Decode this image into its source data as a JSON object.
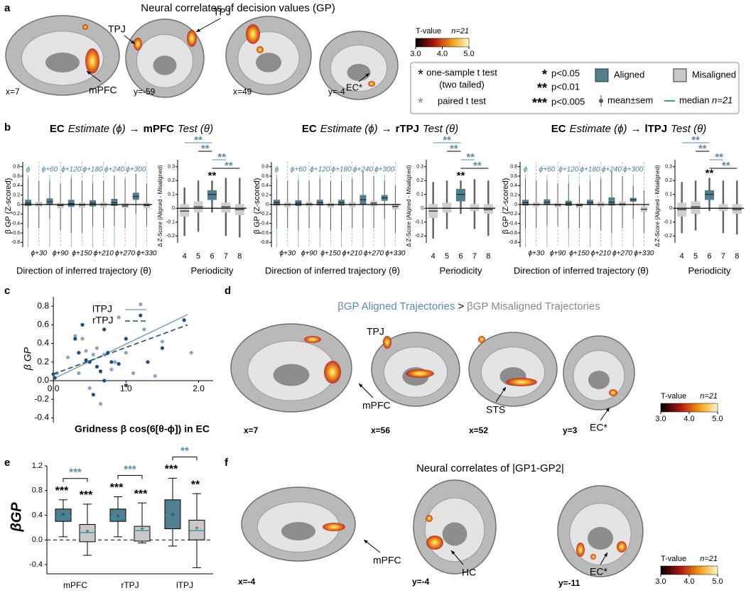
{
  "a": {
    "label": "a",
    "title": "Neural correlates of decision values (GP)",
    "slices": [
      "x=7",
      "y=-59",
      "x=49",
      "y=-4"
    ],
    "labels": [
      "TPJ",
      "TPJ",
      "mPFC",
      "EC*"
    ],
    "colorbar": {
      "title": "T-value",
      "n": "n=21",
      "ticks": [
        {
          "value": 3,
          "label": "3.0"
        },
        {
          "value": 4,
          "label": "4.0"
        },
        {
          "value": 5,
          "label": "5.0"
        }
      ]
    }
  },
  "legend": {
    "star": "*",
    "one_sample": "one-sample t test",
    "two_tailed": "(two tailed)",
    "teal_star": "*",
    "paired": "paired t test",
    "p1_mark": "*",
    "p1": "p<0.05",
    "p2_mark": "**",
    "p2": "p<0.01",
    "p3_mark": "***",
    "p3": "p<0.005",
    "aligned": "Aligned",
    "misaligned": "Misaligned",
    "mean": "mean±sem",
    "median": "median",
    "n": "n=21",
    "aligned_color": "#4f7f91",
    "misaligned_color": "#c8c8c8"
  },
  "b": {
    "label": "b",
    "charts": [
      {
        "title": {
          "region": "EC",
          "estimate": "Estimate (ϕ)",
          "arrow": "→",
          "target": "mPFC",
          "test": "Test (θ)"
        },
        "direction": {
          "ylabel": "β GP (Z-scored)",
          "xlabel": "Direction of inferred trajectory (θ)",
          "aligned_labels": [
            "ϕ",
            "ϕ+60",
            "ϕ+120",
            "ϕ+180",
            "ϕ+240",
            "ϕ+300"
          ],
          "misaligned_labels": [
            "ϕ+30",
            "ϕ+90",
            "ϕ+150",
            "ϕ+210",
            "ϕ+270",
            "ϕ+330"
          ],
          "ylim": [
            -0.9,
            0.9
          ],
          "yticks": [
            -0.8,
            -0.6,
            -0.4,
            -0.2,
            0,
            0.2,
            0.4,
            0.6,
            0.8
          ],
          "aligned": {
            "q1": [
              -0.03,
              -0.01,
              -0.05,
              -0.04,
              -0.03,
              0.1
            ],
            "median": [
              0.03,
              0.06,
              0.02,
              0.03,
              0.04,
              0.17
            ],
            "q3": [
              0.1,
              0.13,
              0.1,
              0.09,
              0.12,
              0.25
            ],
            "low": [
              -0.5,
              -0.3,
              -0.6,
              -0.45,
              -0.45,
              -0.2
            ],
            "high": [
              0.55,
              0.5,
              0.55,
              0.45,
              0.6,
              0.65
            ]
          },
          "misaligned": {
            "q1": [
              -0.05,
              -0.08,
              -0.07,
              -0.06,
              -0.07,
              -0.08
            ],
            "median": [
              0.0,
              -0.02,
              -0.01,
              0.0,
              -0.03,
              -0.02
            ],
            "q3": [
              0.06,
              0.04,
              0.05,
              0.05,
              0.03,
              0.04
            ],
            "low": [
              -0.5,
              -0.55,
              -0.6,
              -0.5,
              -0.5,
              -0.45
            ],
            "high": [
              0.5,
              0.45,
              0.5,
              0.5,
              0.55,
              0.45
            ]
          }
        },
        "periodicity": {
          "ylabel": "Δ Z-Score (Aligned - Misaligned)",
          "xlabel": "Periodicity",
          "categories": [
            "4",
            "5",
            "6",
            "7",
            "8"
          ],
          "ylim": [
            -0.25,
            0.35
          ],
          "yticks": [
            -0.2,
            -0.1,
            0,
            0.1,
            0.2,
            0.3
          ],
          "q1": [
            -0.06,
            -0.03,
            0.06,
            -0.03,
            -0.05
          ],
          "median": [
            -0.02,
            0.01,
            0.1,
            0.01,
            -0.01
          ],
          "q3": [
            0.03,
            0.05,
            0.13,
            0.04,
            0.03
          ],
          "low": [
            -0.2,
            -0.17,
            -0.03,
            -0.2,
            -0.21
          ],
          "high": [
            0.15,
            0.2,
            0.2,
            0.22,
            0.22
          ],
          "colors": [
            "#cfcfcf",
            "#cfcfcf",
            "#4f7f91",
            "#cfcfcf",
            "#cfcfcf"
          ],
          "sig": [
            "",
            "",
            "**",
            "",
            ""
          ],
          "comparisons": [
            {
              "from": "6",
              "to": "4",
              "label": "**"
            },
            {
              "from": "6",
              "to": "5",
              "label": "**"
            },
            {
              "from": "6",
              "to": "7",
              "label": "**"
            },
            {
              "from": "6",
              "to": "8",
              "label": "**"
            }
          ]
        }
      },
      {
        "title": {
          "region": "EC",
          "estimate": "Estimate (ϕ)",
          "arrow": "→",
          "target": "rTPJ",
          "test": "Test (θ)"
        },
        "direction": {
          "ylabel": "β GP (Z-scored)",
          "xlabel": "Direction of inferred trajectory (θ)",
          "aligned_labels": [
            "ϕ",
            "ϕ+60",
            "ϕ+120",
            "ϕ+180",
            "ϕ+240",
            "ϕ+300"
          ],
          "misaligned_labels": [
            "ϕ+30",
            "ϕ+90",
            "ϕ+150",
            "ϕ+210",
            "ϕ+270",
            "ϕ+330"
          ],
          "ylim": [
            -0.9,
            0.9
          ],
          "yticks": [
            -0.8,
            -0.6,
            -0.4,
            -0.2,
            0,
            0.2,
            0.4,
            0.6,
            0.8
          ],
          "aligned": {
            "q1": [
              -0.02,
              -0.03,
              -0.02,
              -0.02,
              0.0,
              0.08
            ],
            "median": [
              0.04,
              0.03,
              0.04,
              0.04,
              0.1,
              0.14
            ],
            "q3": [
              0.1,
              0.09,
              0.1,
              0.1,
              0.2,
              0.2
            ],
            "low": [
              -0.5,
              -0.55,
              -0.5,
              -0.55,
              -0.5,
              -0.3
            ],
            "high": [
              0.55,
              0.5,
              0.55,
              0.5,
              0.7,
              0.5
            ]
          },
          "misaligned": {
            "q1": [
              -0.06,
              -0.05,
              -0.07,
              -0.06,
              -0.04,
              -0.1
            ],
            "median": [
              0.0,
              0.01,
              -0.01,
              0.0,
              0.03,
              -0.04
            ],
            "q3": [
              0.05,
              0.06,
              0.04,
              0.06,
              0.08,
              0.02
            ],
            "low": [
              -0.5,
              -0.5,
              -0.55,
              -0.5,
              -0.5,
              -0.6
            ],
            "high": [
              0.5,
              0.5,
              0.5,
              0.55,
              0.6,
              0.4
            ]
          }
        },
        "periodicity": {
          "ylabel": "Δ Z-Score (Aligned - Misaligned)",
          "xlabel": "Periodicity",
          "categories": [
            "4",
            "5",
            "6",
            "7",
            "8"
          ],
          "ylim": [
            -0.25,
            0.35
          ],
          "yticks": [
            -0.2,
            -0.1,
            0,
            0.1,
            0.2,
            0.3
          ],
          "q1": [
            -0.07,
            -0.03,
            0.05,
            -0.02,
            -0.04
          ],
          "median": [
            -0.02,
            0.0,
            0.1,
            0.0,
            -0.01
          ],
          "q3": [
            0.03,
            0.04,
            0.14,
            0.03,
            0.03
          ],
          "low": [
            -0.22,
            -0.15,
            -0.04,
            -0.15,
            -0.2
          ],
          "high": [
            0.19,
            0.2,
            0.2,
            0.21,
            0.2
          ],
          "colors": [
            "#cfcfcf",
            "#cfcfcf",
            "#4f7f91",
            "#cfcfcf",
            "#cfcfcf"
          ],
          "sig": [
            "",
            "",
            "**",
            "",
            ""
          ],
          "comparisons": [
            {
              "from": "6",
              "to": "4",
              "label": "**"
            },
            {
              "from": "6",
              "to": "5",
              "label": "**"
            },
            {
              "from": "6",
              "to": "7",
              "label": "**"
            },
            {
              "from": "6",
              "to": "8",
              "label": "**"
            }
          ]
        }
      },
      {
        "title": {
          "region": "EC",
          "estimate": "Estimate (ϕ)",
          "arrow": "→",
          "target": "lTPJ",
          "test": "Test (θ)"
        },
        "direction": {
          "ylabel": "β GP (Z-scored)",
          "xlabel": "Direction of inferred trajectory (θ)",
          "aligned_labels": [
            "ϕ",
            "ϕ+60",
            "ϕ+120",
            "ϕ+180",
            "ϕ+240",
            "ϕ+300"
          ],
          "misaligned_labels": [
            "ϕ+30",
            "ϕ+90",
            "ϕ+150",
            "ϕ+210",
            "ϕ+270",
            "ϕ+330"
          ],
          "ylim": [
            -0.9,
            0.9
          ],
          "yticks": [
            -0.8,
            -0.6,
            -0.4,
            -0.2,
            0,
            0.2,
            0.4,
            0.6,
            0.8
          ],
          "aligned": {
            "q1": [
              -0.02,
              -0.01,
              -0.03,
              -0.01,
              -0.02,
              0.06
            ],
            "median": [
              0.04,
              0.05,
              0.03,
              0.04,
              0.05,
              0.1
            ],
            "q3": [
              0.1,
              0.11,
              0.08,
              0.1,
              0.15,
              0.14
            ],
            "low": [
              -0.5,
              -0.45,
              -0.5,
              -0.5,
              -0.6,
              -0.3
            ],
            "high": [
              0.55,
              0.5,
              0.45,
              0.5,
              0.7,
              0.4
            ]
          },
          "misaligned": {
            "q1": [
              -0.05,
              -0.06,
              -0.07,
              -0.05,
              -0.04,
              -0.16
            ],
            "median": [
              0.0,
              -0.01,
              -0.02,
              0.0,
              0.01,
              -0.1
            ],
            "q3": [
              0.05,
              0.04,
              0.03,
              0.06,
              0.07,
              -0.04
            ],
            "low": [
              -0.5,
              -0.45,
              -0.5,
              -0.55,
              -0.5,
              -0.6
            ],
            "high": [
              0.5,
              0.45,
              0.4,
              0.55,
              0.6,
              0.3
            ]
          }
        },
        "periodicity": {
          "ylabel": "Δ Z-Score (Aligned - Misaligned)",
          "xlabel": "Periodicity",
          "categories": [
            "4",
            "5",
            "6",
            "7",
            "8"
          ],
          "ylim": [
            -0.25,
            0.35
          ],
          "yticks": [
            -0.2,
            -0.1,
            0,
            0.1,
            0.2,
            0.3
          ],
          "q1": [
            -0.06,
            -0.04,
            0.06,
            -0.02,
            -0.04
          ],
          "median": [
            -0.01,
            0.01,
            0.1,
            0.0,
            -0.01
          ],
          "q3": [
            0.04,
            0.05,
            0.13,
            0.03,
            0.03
          ],
          "low": [
            -0.18,
            -0.16,
            -0.02,
            -0.18,
            -0.19
          ],
          "high": [
            0.19,
            0.2,
            0.22,
            0.2,
            0.2
          ],
          "colors": [
            "#cfcfcf",
            "#cfcfcf",
            "#4f7f91",
            "#cfcfcf",
            "#cfcfcf"
          ],
          "sig": [
            "",
            "",
            "**",
            "",
            ""
          ],
          "comparisons": [
            {
              "from": "6",
              "to": "4",
              "label": "**"
            },
            {
              "from": "6",
              "to": "5",
              "label": "**"
            },
            {
              "from": "6",
              "to": "7",
              "label": "**"
            },
            {
              "from": "6",
              "to": "8",
              "label": "**"
            }
          ]
        }
      }
    ]
  },
  "c": {
    "label": "c",
    "type": "scatter",
    "xlabel": "Gridness β cos(6[θ-ϕ]) in EC",
    "ylabel": "β GP",
    "xlim": [
      -0.05,
      2.2
    ],
    "ylim": [
      -0.45,
      0.9
    ],
    "xticks": [
      {
        "value": 0,
        "label": "0.0"
      },
      {
        "value": 1,
        "label": "1.0"
      },
      {
        "value": 2,
        "label": "2.0"
      }
    ],
    "yticks": [
      {
        "value": -0.4,
        "label": "-0.4"
      },
      {
        "value": -0.2,
        "label": "-0.2"
      },
      {
        "value": 0,
        "label": "0.0"
      },
      0.2,
      0.4,
      0.6,
      0.8
    ],
    "series": [
      {
        "name": "lTPJ",
        "color": "#8aa6bf",
        "line_style": "solid",
        "x": [
          0.05,
          0.2,
          0.3,
          0.35,
          0.4,
          0.45,
          0.5,
          0.55,
          0.6,
          0.65,
          0.7,
          0.8,
          0.85,
          0.9,
          1.0,
          1.1,
          1.2,
          1.25,
          1.4,
          1.5,
          1.9
        ],
        "y": [
          0.08,
          0.25,
          0.48,
          0.08,
          0.45,
          0.32,
          -0.08,
          0.28,
          0.35,
          -0.25,
          0.28,
          0.12,
          0.2,
          0.68,
          0.3,
          0.08,
          0.82,
          0.55,
          0.05,
          0.42,
          0.3
        ],
        "fit_x": [
          0,
          1.85
        ],
        "fit_y": [
          0.02,
          0.71
        ]
      },
      {
        "name": "rTPJ",
        "color": "#1f4e79",
        "line_style": "dashed",
        "x": [
          0.0,
          0.02,
          0.3,
          0.35,
          0.4,
          0.45,
          0.5,
          0.55,
          0.6,
          0.65,
          0.7,
          0.7,
          0.75,
          0.8,
          0.9,
          1.0,
          1.0,
          1.2,
          1.3,
          1.5,
          1.8
        ],
        "y": [
          0.07,
          0.03,
          0.45,
          0.3,
          0.6,
          0.22,
          0.2,
          -0.15,
          0.15,
          0.1,
          0.0,
          0.55,
          0.3,
          0.2,
          0.18,
          -0.05,
          0.45,
          0.7,
          0.2,
          0.35,
          0.65
        ],
        "fit_x": [
          0,
          1.85
        ],
        "fit_y": [
          0.07,
          0.6
        ]
      }
    ]
  },
  "d": {
    "label": "d",
    "title_aligned": "βGP Aligned Trajectories",
    "title_op": ">",
    "title_misaligned": "βGP Misaligned Trajectories",
    "slices": [
      "x=7",
      "x=56",
      "x=52",
      "y=3"
    ],
    "labels": [
      "TPJ",
      "mPFC",
      "STS",
      "EC*"
    ],
    "colorbar": {
      "title": "T-value",
      "n": "n=21",
      "ticks": [
        {
          "value": 3,
          "label": "3.0"
        },
        {
          "value": 4,
          "label": "4.0"
        },
        {
          "value": 5,
          "label": "5.0"
        }
      ]
    }
  },
  "e": {
    "label": "e",
    "type": "box",
    "ylabel": "βGP",
    "categories": [
      "mPFC",
      "rTPJ",
      "lTPJ"
    ],
    "ylim": [
      -0.55,
      1.2
    ],
    "yticks": [
      {
        "value": -0.4,
        "label": "-0.4"
      },
      {
        "value": 0,
        "label": "0.0"
      },
      0.4,
      0.8,
      1.2
    ],
    "reference_line": 0,
    "series": [
      {
        "name": "Aligned",
        "color": "#4f7f91",
        "q1": [
          0.3,
          0.3,
          0.18
        ],
        "median": [
          0.38,
          0.36,
          0.4
        ],
        "q3": [
          0.5,
          0.5,
          0.65
        ],
        "low": [
          0.05,
          0.05,
          -0.1
        ],
        "high": [
          0.65,
          0.7,
          1.0
        ],
        "mean": [
          0.4,
          0.38,
          0.4
        ],
        "sig": [
          "***",
          "***",
          "***"
        ]
      },
      {
        "name": "Misaligned",
        "color": "#c8c8c8",
        "q1": [
          -0.03,
          -0.02,
          0.0
        ],
        "median": [
          0.12,
          0.15,
          0.15
        ],
        "q3": [
          0.25,
          0.22,
          0.32
        ],
        "low": [
          -0.25,
          -0.05,
          -0.45
        ],
        "high": [
          0.58,
          0.6,
          0.75
        ],
        "mean": [
          0.13,
          0.17,
          0.18
        ],
        "sig": [
          "***",
          "***",
          "**"
        ]
      }
    ],
    "paired_sig": [
      "***",
      "***",
      "**"
    ]
  },
  "f": {
    "label": "f",
    "title": "Neural correlates of |GP1-GP2|",
    "slices": [
      "x=-4",
      "y=-4",
      "y=-11"
    ],
    "labels": [
      "mPFC",
      "HC",
      "EC*"
    ],
    "colorbar": {
      "title": "T-value",
      "n": "n=21",
      "ticks": [
        {
          "value": 3,
          "label": "3.0"
        },
        {
          "value": 4,
          "label": "4.0"
        },
        {
          "value": 5,
          "label": "5.0"
        }
      ]
    }
  }
}
